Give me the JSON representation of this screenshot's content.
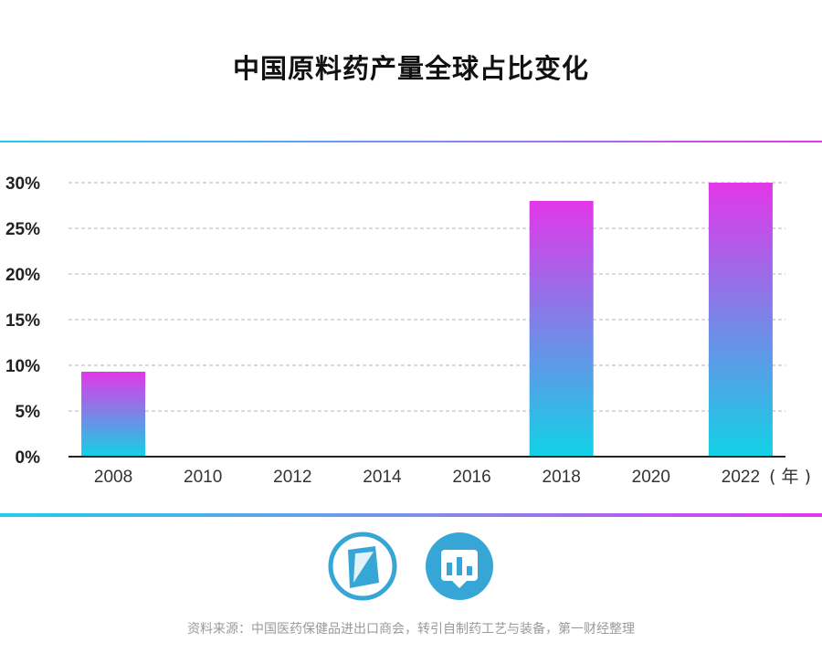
{
  "chart_data": {
    "type": "bar",
    "title": "中国原料药产量全球占比变化",
    "categories": [
      "2008",
      "2010",
      "2012",
      "2014",
      "2016",
      "2018",
      "2020",
      "2022"
    ],
    "values": [
      9.3,
      0,
      0,
      0,
      0,
      28,
      0,
      30
    ],
    "bar_categories": [
      "2008",
      "2018",
      "2022"
    ],
    "yticks": [
      "0%",
      "5%",
      "10%",
      "15%",
      "20%",
      "25%",
      "30%"
    ],
    "ylim": [
      0,
      30
    ],
    "x_unit": "( 年 )",
    "grid": "dashed horizontal",
    "bar_gradient": {
      "top": "#e237e8",
      "bottom": "#12d2e6"
    }
  },
  "source": "资料来源：中国医药保健品进出口商会，转引自制药工艺与装备，第一财经整理",
  "logos": [
    {
      "icon": "book-logo-icon",
      "color": "#36a6d6"
    },
    {
      "icon": "bar-chart-logo-icon",
      "color": "#36a6d6"
    }
  ]
}
